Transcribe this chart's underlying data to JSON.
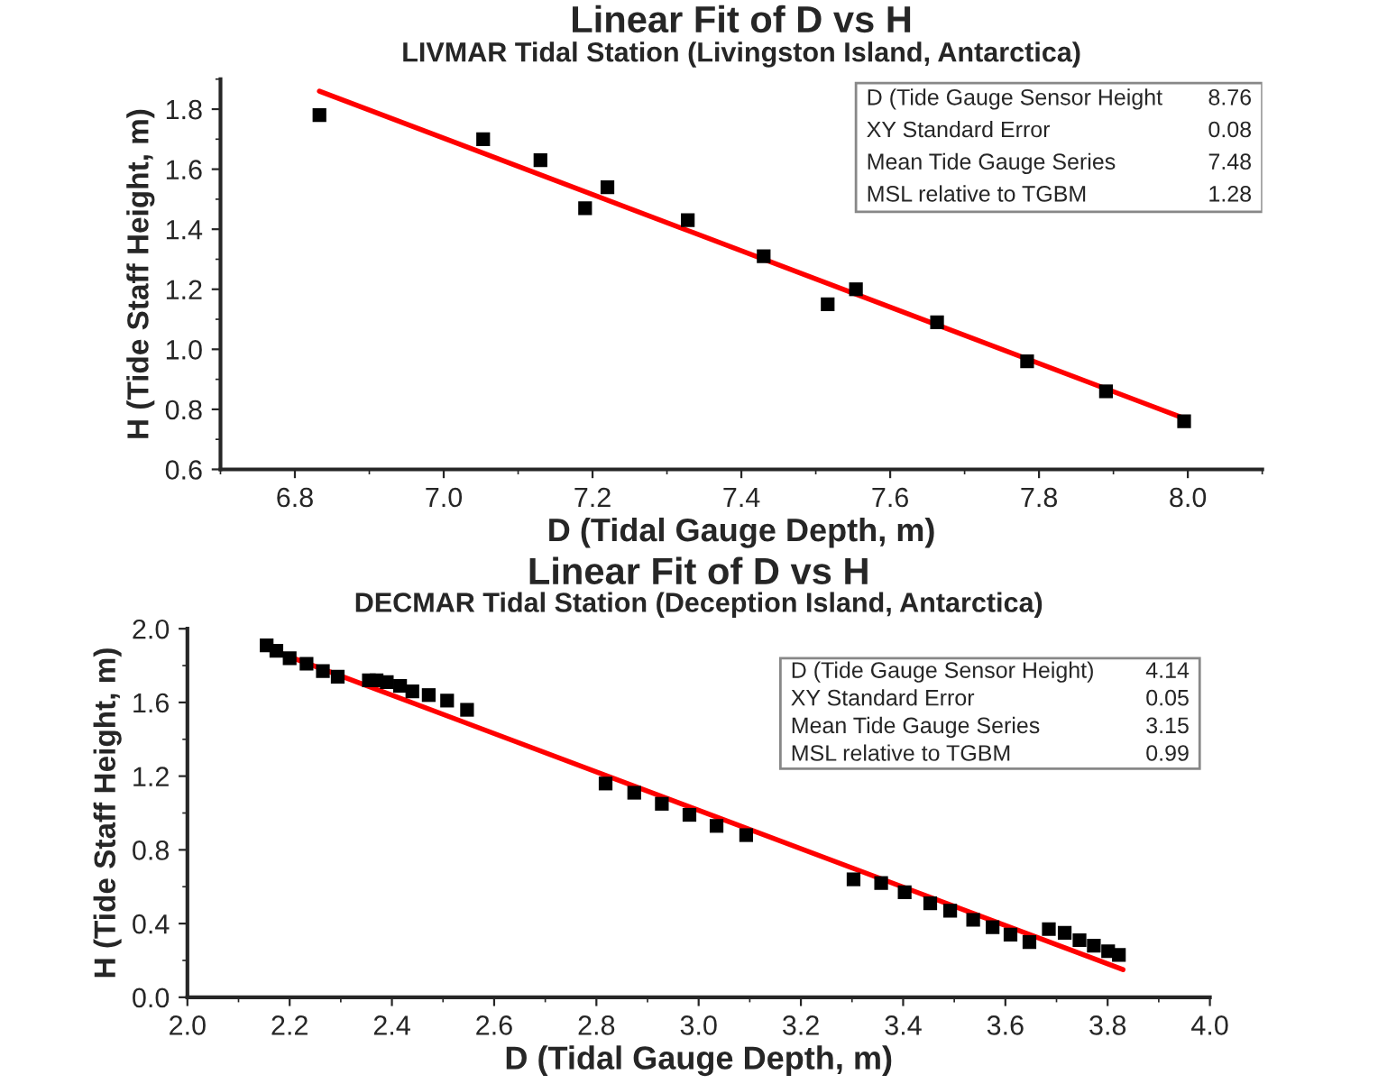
{
  "chart_data": [
    {
      "type": "scatter",
      "title": "Linear Fit of D vs H",
      "subtitle": "LIVMAR Tidal Station (Livingston Island, Antarctica)",
      "xlabel": "D (Tidal Gauge Depth, m)",
      "ylabel": "H (Tide Staff Height, m)",
      "xlim": [
        6.7,
        8.1
      ],
      "ylim": [
        0.6,
        1.9
      ],
      "xticks": [
        6.8,
        {
          "value": 7.0,
          "label": "7.0"
        },
        7.2,
        7.4,
        7.6,
        7.8,
        {
          "value": 8.0,
          "label": "8.0"
        }
      ],
      "yticks": [
        0.6,
        0.8,
        {
          "value": 1.0,
          "label": "1.0"
        },
        1.2,
        1.4,
        1.6,
        1.8
      ],
      "grid": false,
      "annotations": [
        "D (Tide Gauge Sensor Height",
        "8.76",
        "XY Standard Error",
        "0.08",
        "Mean Tide Gauge Series",
        "7.48",
        "MSL relative to TGBM",
        "1.28"
      ],
      "series": [
        {
          "color": "#000000",
          "marker": "square",
          "x": [
            6.833,
            7.053,
            7.13,
            7.19,
            7.22,
            7.328,
            7.43,
            7.516,
            7.554,
            7.663,
            7.784,
            7.89,
            7.995
          ],
          "values": [
            1.78,
            1.7,
            1.63,
            1.47,
            1.54,
            1.43,
            1.31,
            1.15,
            1.2,
            1.09,
            0.96,
            0.86,
            0.76
          ]
        },
        {
          "type": "line",
          "color": "#ff0000",
          "line_style": "solid",
          "x": [
            6.833,
            7.995
          ],
          "values": [
            1.86,
            0.77
          ]
        }
      ]
    },
    {
      "type": "scatter",
      "title": "Linear Fit of D vs H",
      "subtitle": "DECMAR Tidal Station (Deception Island, Antarctica)",
      "xlabel": "D (Tidal Gauge Depth, m)",
      "ylabel": "H (Tide Staff Height, m)",
      "xlim": [
        2.0,
        4.0
      ],
      "ylim": [
        0.0,
        2.0
      ],
      "xticks": [
        {
          "value": 2.0,
          "label": "2.0"
        },
        2.2,
        2.4,
        2.6,
        2.8,
        {
          "value": 3.0,
          "label": "3.0"
        },
        3.2,
        3.4,
        3.6,
        3.8,
        {
          "value": 4.0,
          "label": "4.0"
        }
      ],
      "yticks": [
        {
          "value": 0.0,
          "label": "0.0"
        },
        0.4,
        0.8,
        1.2,
        1.6,
        {
          "value": 2.0,
          "label": "2.0"
        }
      ],
      "grid": false,
      "annotations": [
        "D (Tide Gauge Sensor Height)",
        "4.14",
        "XY Standard Error",
        "0.05",
        "Mean Tide Gauge Series",
        "3.15",
        "MSL relative to TGBM",
        "0.99"
      ],
      "series": [
        {
          "color": "#000000",
          "marker": "square",
          "x": [
            2.155,
            2.174,
            2.2,
            2.233,
            2.265,
            2.294,
            2.355,
            2.37,
            2.39,
            2.416,
            2.44,
            2.472,
            2.508,
            2.547,
            2.818,
            2.874,
            2.928,
            2.982,
            3.035,
            3.093,
            3.303,
            3.357,
            3.403,
            3.453,
            3.492,
            3.537,
            3.575,
            3.61,
            3.647,
            3.685,
            3.716,
            3.745,
            3.773,
            3.801,
            3.822
          ],
          "values": [
            1.91,
            1.88,
            1.84,
            1.81,
            1.77,
            1.74,
            1.72,
            1.72,
            1.71,
            1.69,
            1.66,
            1.64,
            1.61,
            1.56,
            1.16,
            1.11,
            1.05,
            0.99,
            0.93,
            0.88,
            0.64,
            0.62,
            0.57,
            0.51,
            0.47,
            0.42,
            0.38,
            0.34,
            0.3,
            0.37,
            0.35,
            0.31,
            0.28,
            0.25,
            0.23
          ]
        },
        {
          "type": "line",
          "color": "#ff0000",
          "line_style": "solid",
          "x": [
            2.15,
            3.83
          ],
          "values": [
            1.9,
            0.15
          ]
        }
      ]
    }
  ]
}
